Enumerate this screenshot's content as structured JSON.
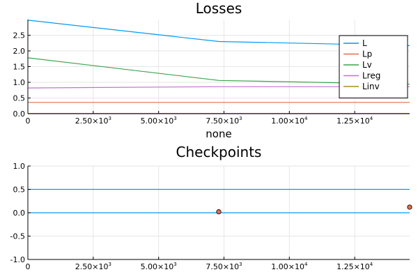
{
  "chart_data": [
    {
      "type": "line",
      "title": "Losses",
      "xlabel": "none",
      "ylabel": "",
      "xlim": [
        0,
        14600
      ],
      "ylim": [
        0,
        3.0
      ],
      "x_ticks": [
        0,
        2500,
        5000,
        7500,
        10000,
        12500
      ],
      "x_tick_labels": [
        {
          "base": "0",
          "exp": ""
        },
        {
          "base": "2.50×10",
          "exp": "3"
        },
        {
          "base": "5.00×10",
          "exp": "3"
        },
        {
          "base": "7.50×10",
          "exp": "3"
        },
        {
          "base": "1.00×10",
          "exp": "4"
        },
        {
          "base": "1.25×10",
          "exp": "4"
        }
      ],
      "y_ticks": [
        0,
        0.5,
        1.0,
        1.5,
        2.0,
        2.5
      ],
      "y_tick_labels": [
        "0.0",
        "0.5",
        "1.0",
        "1.5",
        "2.0",
        "2.5"
      ],
      "grid": true,
      "legend_position": "top-right",
      "series": [
        {
          "name": "L",
          "color": "#009af9",
          "x": [
            0,
            7300,
            14600
          ],
          "y": [
            2.98,
            2.3,
            2.17
          ]
        },
        {
          "name": "Lp",
          "color": "#e26f46",
          "x": [
            0,
            7300,
            14600
          ],
          "y": [
            0.36,
            0.36,
            0.36
          ]
        },
        {
          "name": "Lv",
          "color": "#3da44d",
          "x": [
            0,
            7300,
            14600
          ],
          "y": [
            1.78,
            1.06,
            0.94
          ]
        },
        {
          "name": "Lreg",
          "color": "#c271d2",
          "x": [
            0,
            7300,
            14600
          ],
          "y": [
            0.82,
            0.86,
            0.86
          ]
        },
        {
          "name": "Linv",
          "color": "#ac8e18",
          "x": [
            0,
            7300,
            14600
          ],
          "y": [
            0.01,
            0.01,
            0.01
          ]
        }
      ]
    },
    {
      "type": "line",
      "title": "Checkpoints",
      "xlabel": "",
      "ylabel": "",
      "xlim": [
        0,
        14600
      ],
      "ylim": [
        -1.0,
        1.0
      ],
      "x_ticks": [
        0,
        2500,
        5000,
        7500,
        10000,
        12500
      ],
      "x_tick_labels": [
        {
          "base": "0",
          "exp": ""
        },
        {
          "base": "2.50×10",
          "exp": "3"
        },
        {
          "base": "5.00×10",
          "exp": "3"
        },
        {
          "base": "7.50×10",
          "exp": "3"
        },
        {
          "base": "1.00×10",
          "exp": "4"
        },
        {
          "base": "1.25×10",
          "exp": "4"
        }
      ],
      "y_ticks": [
        -1.0,
        -0.5,
        0.0,
        0.5,
        1.0
      ],
      "y_tick_labels": [
        "-1.0",
        "-0.5",
        "0.0",
        "0.5",
        "1.0"
      ],
      "grid": true,
      "hlines": [
        {
          "y": 0.5,
          "color": "#009af9"
        },
        {
          "y": 0.0,
          "color": "#009af9"
        }
      ],
      "points": [
        {
          "x": 7300,
          "y": 0.02,
          "color": "#e26f46"
        },
        {
          "x": 14600,
          "y": 0.12,
          "color": "#e26f46"
        }
      ]
    }
  ]
}
